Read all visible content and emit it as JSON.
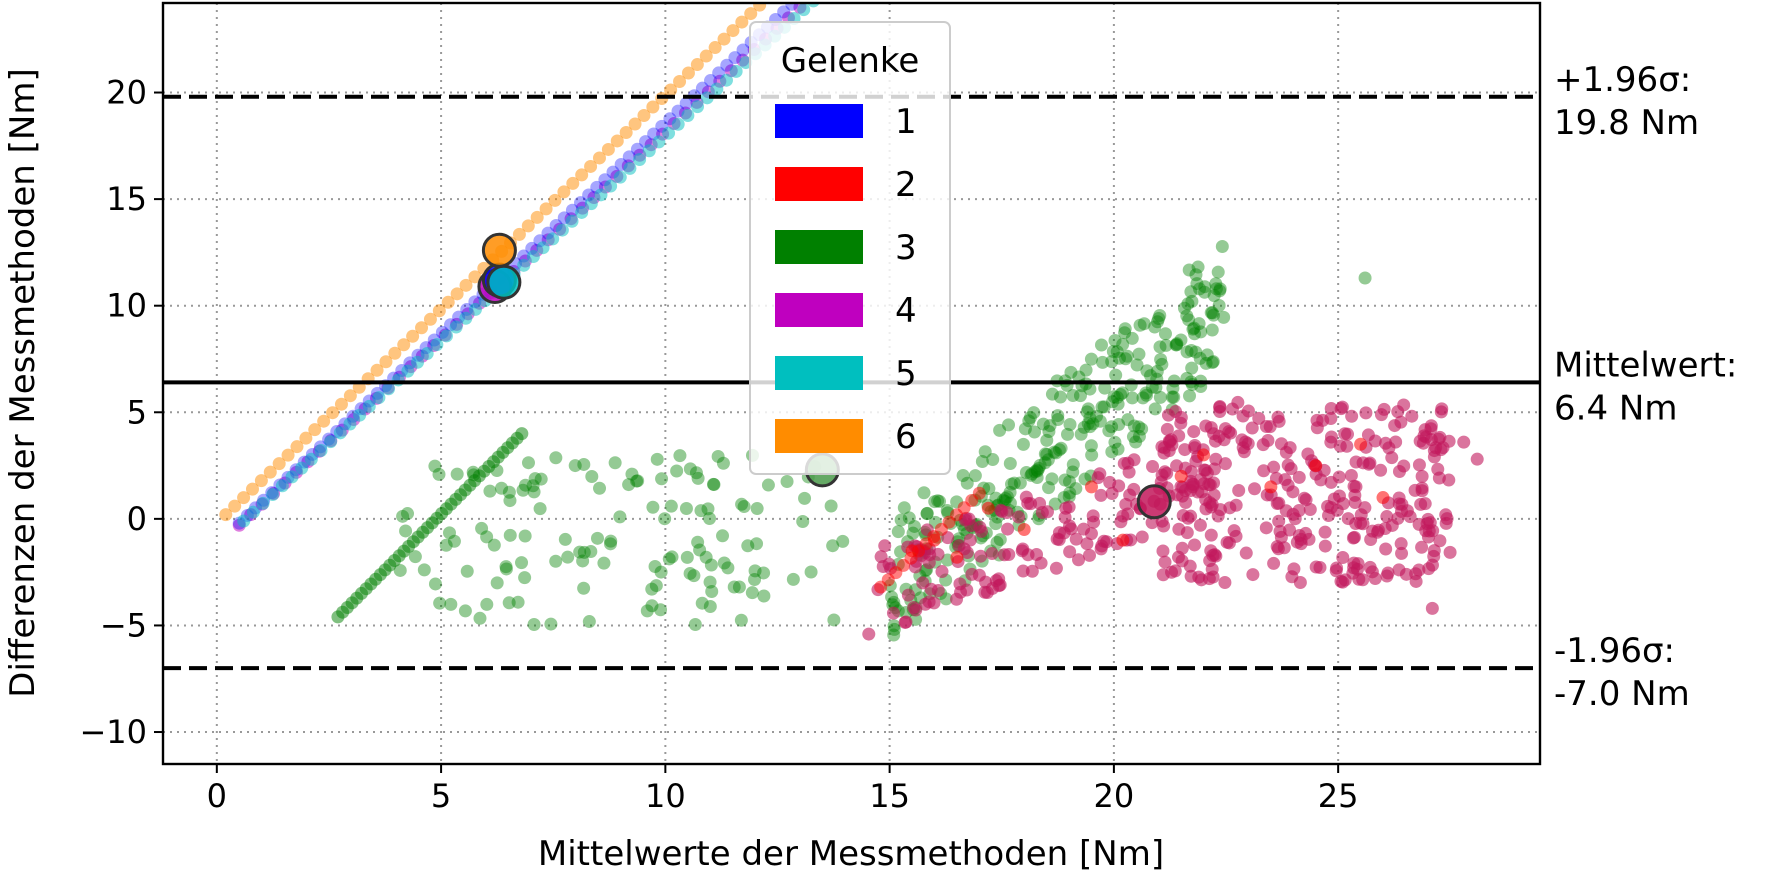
{
  "chart_data": {
    "type": "scatter",
    "title": "",
    "xlabel": "Mittelwerte der Messmethoden [Nm]",
    "ylabel": "Differenzen der Messmethoden [Nm]",
    "xlim": [
      -1.2,
      29.5
    ],
    "ylim": [
      -11.5,
      24.2
    ],
    "xticks": [
      0,
      5,
      10,
      15,
      20,
      25
    ],
    "yticks": [
      -10,
      -5,
      0,
      5,
      10,
      15,
      20
    ],
    "grid": true,
    "legend": {
      "title": "Gelenke",
      "placement": "top-center",
      "entries": [
        {
          "label": "1",
          "color": "#0000ff"
        },
        {
          "label": "2",
          "color": "#ff0000"
        },
        {
          "label": "3",
          "color": "#008000"
        },
        {
          "label": "4",
          "color": "#bf00bf"
        },
        {
          "label": "5",
          "color": "#00bfbf"
        },
        {
          "label": "6",
          "color": "#ff8c00"
        }
      ]
    },
    "reference_lines": [
      {
        "name": "upper",
        "y": 19.8,
        "style": "dashed",
        "label_line1": "+1.96σ:",
        "label_line2": "19.8 Nm"
      },
      {
        "name": "mean",
        "y": 6.4,
        "style": "solid",
        "label_line1": "Mittelwert:",
        "label_line2": "6.4 Nm"
      },
      {
        "name": "lower",
        "y": -7.0,
        "style": "dashed",
        "label_line1": "-1.96σ:",
        "label_line2": "-7.0 Nm"
      }
    ],
    "series": [
      {
        "name": "1",
        "color": "#0000ff",
        "line": {
          "x0": 0.5,
          "y0": -0.2,
          "x1": 13.0,
          "y1": 24.5,
          "n": 70
        },
        "cloud": [],
        "mean_point": {
          "x": 6.3,
          "y": 11.2
        }
      },
      {
        "name": "2",
        "color": "#ff0000",
        "line": {
          "x0": 14.8,
          "y0": -3.2,
          "x1": 17.0,
          "y1": 1.2,
          "n": 14
        },
        "cloud": [
          [
            15.5,
            -1.5
          ],
          [
            16.0,
            -1.0
          ],
          [
            16.5,
            -1.8
          ],
          [
            17.2,
            0.5
          ],
          [
            18.0,
            -0.5
          ],
          [
            19.5,
            1.5
          ],
          [
            20.2,
            -1.0
          ],
          [
            21.5,
            2.0
          ],
          [
            22.0,
            3.0
          ],
          [
            23.5,
            1.5
          ],
          [
            24.5,
            2.5
          ],
          [
            25.5,
            3.5
          ],
          [
            26.0,
            1.0
          ]
        ],
        "mean_point": {
          "x": 20.9,
          "y": 0.8
        }
      },
      {
        "name": "3",
        "color": "#008000",
        "line": {
          "x0": 2.7,
          "y0": -4.6,
          "x1": 6.8,
          "y1": 4.0,
          "n": 40
        },
        "cloud": [],
        "mean_point": {
          "x": 13.5,
          "y": 2.3
        }
      },
      {
        "name": "4",
        "color": "#bf00bf",
        "line": {
          "x0": 0.5,
          "y0": -0.3,
          "x1": 13.0,
          "y1": 24.0,
          "n": 50
        },
        "cloud": [],
        "mean_point": {
          "x": 6.2,
          "y": 10.9
        }
      },
      {
        "name": "5",
        "color": "#00bfbf",
        "line": {
          "x0": 0.6,
          "y0": -0.1,
          "x1": 13.3,
          "y1": 24.3,
          "n": 60
        },
        "cloud": [],
        "mean_point": {
          "x": 6.4,
          "y": 11.1
        }
      },
      {
        "name": "6",
        "color": "#ff8c00",
        "line": {
          "x0": 0.2,
          "y0": 0.2,
          "x1": 12.3,
          "y1": 24.5,
          "n": 62
        },
        "cloud": [],
        "mean_point": {
          "x": 6.3,
          "y": 12.6
        }
      }
    ]
  }
}
